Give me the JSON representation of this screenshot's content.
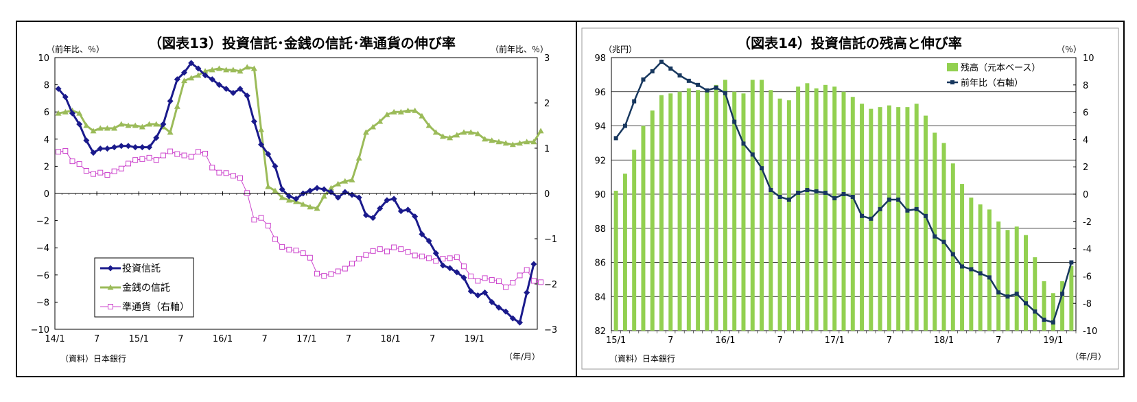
{
  "chart_data": [
    {
      "type": "line",
      "title": "（図表13）投資信託･金銭の信託･準通貨の伸び率",
      "ylabel_left": "（前年比、％）",
      "ylabel_right": "（前年比、％）",
      "source": "（資料）日本銀行",
      "xunit": "（年/月）",
      "x_ticks": [
        "14/1",
        "7",
        "15/1",
        "7",
        "16/1",
        "7",
        "17/1",
        "7",
        "18/1",
        "7",
        "19/1"
      ],
      "ylim_left": [
        -10,
        10
      ],
      "yticks_left": [
        "10",
        "8",
        "6",
        "4",
        "2",
        "0",
        "−2",
        "−4",
        "−6",
        "−8",
        "−10"
      ],
      "ylim_right": [
        -3,
        3
      ],
      "yticks_right": [
        "3",
        "2",
        "1",
        "0",
        "−1",
        "−2",
        "−3"
      ],
      "legend_position": "bottom-left",
      "series": [
        {
          "name": "投資信託",
          "axis": "left",
          "color": "#1a1a8c",
          "marker": "diamond",
          "values": [
            7.7,
            7.1,
            5.9,
            5.1,
            3.9,
            3.0,
            3.3,
            3.3,
            3.4,
            3.5,
            3.5,
            3.4,
            3.4,
            3.4,
            4.1,
            5.1,
            6.8,
            8.4,
            8.9,
            9.6,
            9.2,
            8.7,
            8.4,
            8.0,
            7.7,
            7.4,
            7.7,
            7.2,
            5.3,
            3.6,
            2.9,
            2.0,
            0.3,
            -0.2,
            -0.4,
            0.0,
            0.2,
            0.4,
            0.3,
            0.1,
            -0.3,
            0.1,
            -0.1,
            -0.3,
            -1.6,
            -1.8,
            -1.1,
            -0.5,
            -0.4,
            -1.3,
            -1.2,
            -1.7,
            -3.0,
            -3.5,
            -4.4,
            -5.3,
            -5.5,
            -5.8,
            -6.2,
            -7.2,
            -7.5,
            -7.3,
            -8.0,
            -8.4,
            -8.7,
            -9.2,
            -9.5,
            -7.3,
            -5.2
          ]
        },
        {
          "name": "金銭の信託",
          "axis": "left",
          "color": "#9bbb59",
          "marker": "triangle",
          "values": [
            5.9,
            6.0,
            6.1,
            5.9,
            5.0,
            4.6,
            4.8,
            4.8,
            4.8,
            5.1,
            5.0,
            5.0,
            4.9,
            5.1,
            5.1,
            4.9,
            4.5,
            6.4,
            8.3,
            8.5,
            8.7,
            9.0,
            9.1,
            9.2,
            9.1,
            9.1,
            9.0,
            9.3,
            9.2,
            4.7,
            0.5,
            0.2,
            -0.3,
            -0.5,
            -0.6,
            -0.8,
            -1.0,
            -1.1,
            -0.2,
            0.4,
            0.7,
            0.9,
            1.0,
            2.6,
            4.5,
            4.9,
            5.3,
            5.8,
            6.0,
            6.0,
            6.1,
            6.1,
            5.7,
            5.0,
            4.5,
            4.2,
            4.1,
            4.3,
            4.5,
            4.5,
            4.4,
            4.0,
            3.9,
            3.8,
            3.7,
            3.6,
            3.7,
            3.8,
            3.8,
            4.6
          ]
        },
        {
          "name": "準通貨（右軸）",
          "axis": "right",
          "color": "#cc44cc",
          "marker": "square",
          "values": [
            0.92,
            0.94,
            0.71,
            0.65,
            0.5,
            0.43,
            0.46,
            0.41,
            0.49,
            0.55,
            0.66,
            0.74,
            0.76,
            0.79,
            0.74,
            0.84,
            0.93,
            0.87,
            0.84,
            0.81,
            0.92,
            0.88,
            0.57,
            0.46,
            0.45,
            0.39,
            0.34,
            0.01,
            -0.58,
            -0.54,
            -0.71,
            -1.01,
            -1.18,
            -1.24,
            -1.26,
            -1.32,
            -1.42,
            -1.77,
            -1.82,
            -1.78,
            -1.72,
            -1.66,
            -1.55,
            -1.44,
            -1.36,
            -1.27,
            -1.23,
            -1.28,
            -1.19,
            -1.23,
            -1.29,
            -1.37,
            -1.39,
            -1.43,
            -1.49,
            -1.44,
            -1.43,
            -1.41,
            -1.61,
            -1.83,
            -1.93,
            -1.87,
            -1.91,
            -1.94,
            -2.07,
            -1.97,
            -1.81,
            -1.69,
            -1.93,
            -1.96
          ]
        }
      ]
    },
    {
      "type": "bar+line",
      "title": "（図表14）投資信託の残高と伸び率",
      "ylabel_left": "（兆円）",
      "ylabel_right": "（％）",
      "source": "（資料）日本銀行",
      "xunit": "（年/月）",
      "x_ticks": [
        "15/1",
        "7",
        "16/1",
        "7",
        "17/1",
        "7",
        "18/1",
        "7",
        "19/1"
      ],
      "ylim_left": [
        82,
        98
      ],
      "yticks_left": [
        "98",
        "96",
        "94",
        "92",
        "90",
        "88",
        "86",
        "84",
        "82"
      ],
      "ylim_right": [
        -10,
        10
      ],
      "yticks_right": [
        "10",
        "8",
        "6",
        "4",
        "2",
        "0",
        "-2",
        "-4",
        "-6",
        "-8",
        "-10"
      ],
      "legend_position": "top-right",
      "series": [
        {
          "name": "残高（元本ベース）",
          "type": "bar",
          "axis": "left",
          "color": "#92d050",
          "values": [
            90.2,
            91.2,
            92.6,
            94.0,
            94.9,
            95.8,
            95.9,
            96.0,
            96.2,
            96.1,
            96.0,
            96.4,
            96.7,
            96.0,
            95.9,
            96.7,
            96.7,
            96.1,
            95.6,
            95.5,
            96.3,
            96.5,
            96.2,
            96.4,
            96.3,
            96.0,
            95.7,
            95.3,
            95.0,
            95.1,
            95.2,
            95.1,
            95.1,
            95.3,
            94.6,
            93.6,
            93.0,
            91.8,
            90.6,
            89.8,
            89.4,
            89.1,
            88.4,
            87.9,
            88.1,
            87.6,
            86.3,
            84.9,
            84.2,
            84.9,
            85.8
          ]
        },
        {
          "name": "前年比（右軸）",
          "type": "line",
          "axis": "right",
          "color": "#17375e",
          "marker": "square",
          "values": [
            4.1,
            5.0,
            6.8,
            8.4,
            9.0,
            9.7,
            9.2,
            8.7,
            8.3,
            8.0,
            7.6,
            7.8,
            7.4,
            5.3,
            3.7,
            2.9,
            1.9,
            0.3,
            -0.2,
            -0.4,
            0.1,
            0.3,
            0.2,
            0.1,
            -0.3,
            0.0,
            -0.2,
            -1.6,
            -1.8,
            -1.1,
            -0.4,
            -0.4,
            -1.2,
            -1.1,
            -1.6,
            -3.1,
            -3.5,
            -4.4,
            -5.3,
            -5.5,
            -5.8,
            -6.1,
            -7.2,
            -7.5,
            -7.3,
            -8.0,
            -8.6,
            -9.2,
            -9.4,
            -7.3,
            -5.0
          ]
        }
      ]
    }
  ]
}
